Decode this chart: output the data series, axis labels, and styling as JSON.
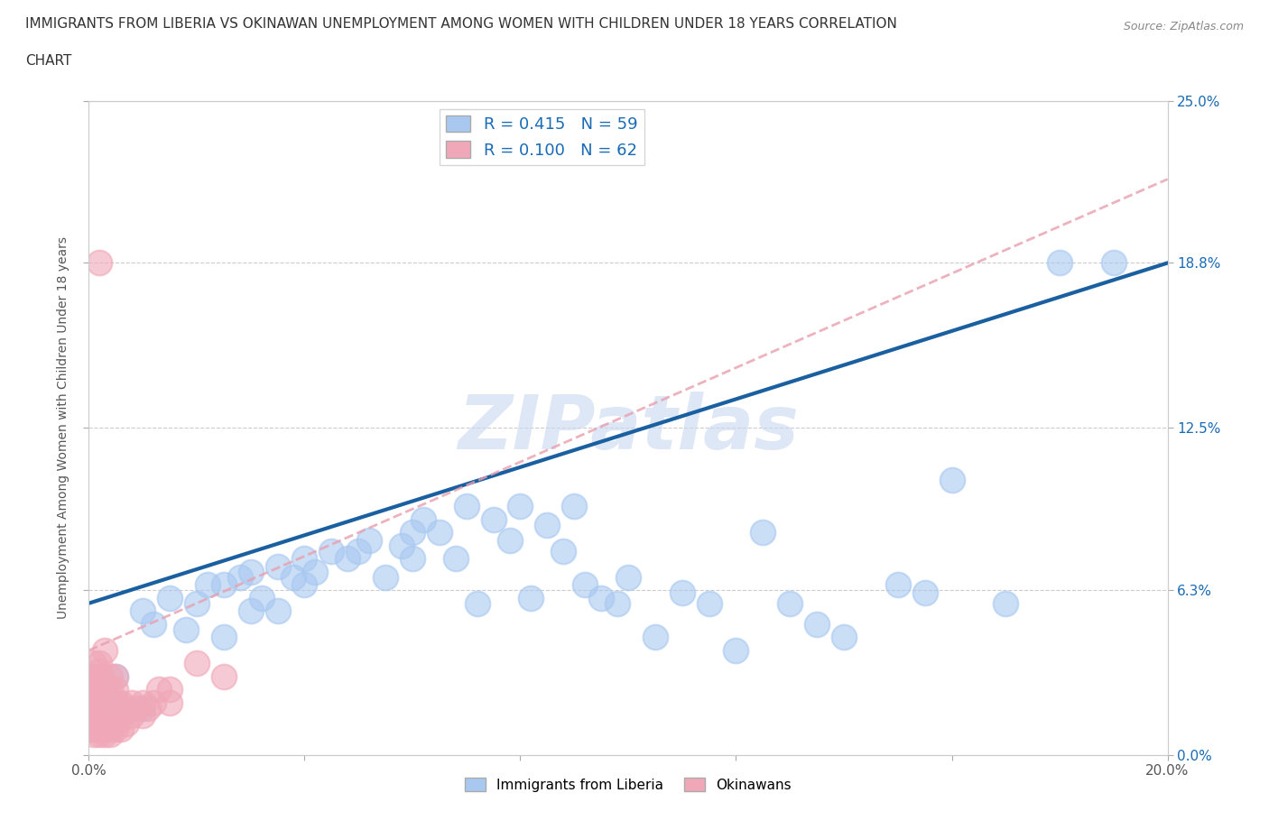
{
  "title_line1": "IMMIGRANTS FROM LIBERIA VS OKINAWAN UNEMPLOYMENT AMONG WOMEN WITH CHILDREN UNDER 18 YEARS CORRELATION",
  "title_line2": "CHART",
  "source": "Source: ZipAtlas.com",
  "ylabel": "Unemployment Among Women with Children Under 18 years",
  "xlim": [
    0.0,
    0.2
  ],
  "ylim": [
    0.0,
    0.25
  ],
  "yticks": [
    0.0,
    0.063,
    0.125,
    0.188,
    0.25
  ],
  "ytick_labels": [
    "0.0%",
    "6.3%",
    "12.5%",
    "18.8%",
    "25.0%"
  ],
  "xticks": [
    0.0,
    0.04,
    0.08,
    0.12,
    0.16,
    0.2
  ],
  "xtick_labels": [
    "0.0%",
    "",
    "",
    "",
    "",
    "20.0%"
  ],
  "blue_color": "#A8C8F0",
  "pink_color": "#F0A8B8",
  "blue_line_color": "#1A5FA0",
  "pink_line_color": "#E8A0B0",
  "R_blue": 0.415,
  "N_blue": 59,
  "R_pink": 0.1,
  "N_pink": 62,
  "blue_scatter_x": [
    0.005,
    0.005,
    0.01,
    0.01,
    0.012,
    0.015,
    0.018,
    0.02,
    0.022,
    0.025,
    0.025,
    0.028,
    0.03,
    0.03,
    0.032,
    0.035,
    0.035,
    0.038,
    0.04,
    0.04,
    0.042,
    0.045,
    0.048,
    0.05,
    0.052,
    0.055,
    0.058,
    0.06,
    0.06,
    0.062,
    0.065,
    0.068,
    0.07,
    0.072,
    0.075,
    0.078,
    0.08,
    0.082,
    0.085,
    0.088,
    0.09,
    0.092,
    0.095,
    0.098,
    0.1,
    0.105,
    0.11,
    0.115,
    0.12,
    0.125,
    0.13,
    0.135,
    0.14,
    0.15,
    0.155,
    0.16,
    0.17,
    0.18,
    0.19
  ],
  "blue_scatter_y": [
    0.03,
    0.02,
    0.055,
    0.018,
    0.05,
    0.06,
    0.048,
    0.058,
    0.065,
    0.045,
    0.065,
    0.068,
    0.055,
    0.07,
    0.06,
    0.072,
    0.055,
    0.068,
    0.065,
    0.075,
    0.07,
    0.078,
    0.075,
    0.078,
    0.082,
    0.068,
    0.08,
    0.075,
    0.085,
    0.09,
    0.085,
    0.075,
    0.095,
    0.058,
    0.09,
    0.082,
    0.095,
    0.06,
    0.088,
    0.078,
    0.095,
    0.065,
    0.06,
    0.058,
    0.068,
    0.045,
    0.062,
    0.058,
    0.04,
    0.085,
    0.058,
    0.05,
    0.045,
    0.065,
    0.062,
    0.105,
    0.058,
    0.188,
    0.188
  ],
  "pink_scatter_x": [
    0.0005,
    0.0005,
    0.0008,
    0.001,
    0.001,
    0.001,
    0.001,
    0.001,
    0.001,
    0.001,
    0.002,
    0.002,
    0.002,
    0.002,
    0.002,
    0.002,
    0.002,
    0.002,
    0.002,
    0.002,
    0.002,
    0.002,
    0.003,
    0.003,
    0.003,
    0.003,
    0.003,
    0.003,
    0.003,
    0.003,
    0.003,
    0.004,
    0.004,
    0.004,
    0.004,
    0.004,
    0.004,
    0.004,
    0.005,
    0.005,
    0.005,
    0.005,
    0.005,
    0.005,
    0.006,
    0.006,
    0.006,
    0.007,
    0.007,
    0.008,
    0.008,
    0.009,
    0.01,
    0.01,
    0.011,
    0.012,
    0.013,
    0.015,
    0.015,
    0.002,
    0.02,
    0.025
  ],
  "pink_scatter_y": [
    0.01,
    0.015,
    0.01,
    0.008,
    0.012,
    0.015,
    0.02,
    0.025,
    0.03,
    0.035,
    0.008,
    0.01,
    0.012,
    0.015,
    0.018,
    0.02,
    0.022,
    0.025,
    0.028,
    0.03,
    0.032,
    0.035,
    0.008,
    0.01,
    0.012,
    0.015,
    0.018,
    0.02,
    0.025,
    0.028,
    0.04,
    0.008,
    0.01,
    0.012,
    0.015,
    0.02,
    0.025,
    0.03,
    0.01,
    0.012,
    0.015,
    0.02,
    0.025,
    0.03,
    0.01,
    0.015,
    0.02,
    0.012,
    0.018,
    0.015,
    0.02,
    0.018,
    0.015,
    0.02,
    0.018,
    0.02,
    0.025,
    0.02,
    0.025,
    0.188,
    0.035,
    0.03
  ],
  "blue_trendline_x0": 0.0,
  "blue_trendline_y0": 0.058,
  "blue_trendline_x1": 0.2,
  "blue_trendline_y1": 0.188,
  "pink_trendline_x0": 0.0,
  "pink_trendline_y0": 0.04,
  "pink_trendline_x1": 0.2,
  "pink_trendline_y1": 0.22,
  "watermark": "ZIPatlas",
  "watermark_color": "#C8D8F0",
  "legend_label_blue": "Immigrants from Liberia",
  "legend_label_pink": "Okinawans",
  "dot_size": 400
}
